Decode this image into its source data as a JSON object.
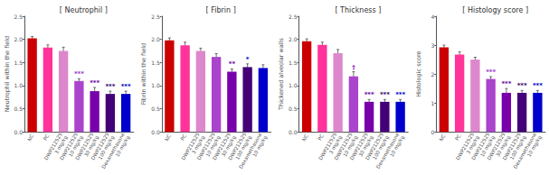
{
  "chart_data": [
    {
      "type": "bar",
      "title": "[ Neutrophil ]",
      "ylabel": "Neutrophil within the field",
      "categories": [
        "NC",
        "PC",
        "DWP212525\n3 mg/kg",
        "DWP212525\n10 mg/kg",
        "DWP212525\n30 mg/kg",
        "DWP212525\n100 mg/kg",
        "Dexamethasone\n10 mg/kg"
      ],
      "values": [
        2.02,
        1.82,
        1.75,
        1.1,
        0.88,
        0.82,
        0.82
      ],
      "errors": [
        0.04,
        0.06,
        0.08,
        0.05,
        0.08,
        0.06,
        0.06
      ],
      "colors": [
        "#cc0000",
        "#ff3399",
        "#dd88cc",
        "#aa44cc",
        "#7700aa",
        "#440077",
        "#0000cc"
      ],
      "ylim": [
        0,
        2.5
      ],
      "yticks": [
        {
          "value": 0,
          "label": "0.0"
        },
        0.5,
        {
          "value": 1,
          "label": "1.0"
        },
        1.5,
        {
          "value": 2,
          "label": "2.0"
        },
        2.5
      ],
      "grid": false,
      "annotations": [
        {
          "category": "DWP212525\n10 mg/kg",
          "text": "***",
          "color": "#9933cc"
        },
        {
          "category": "DWP212525\n30 mg/kg",
          "text": "***",
          "color": "#660099"
        },
        {
          "category": "DWP212525\n100 mg/kg",
          "text": "***",
          "color": "#330066"
        },
        {
          "category": "Dexamethasone\n10 mg/kg",
          "text": "***",
          "color": "#0000cc"
        }
      ]
    },
    {
      "type": "bar",
      "title": "[ Fibrin ]",
      "ylabel": "Fibrin within the field",
      "categories": [
        "NC",
        "PC",
        "DWP212525\n3 mg/kg",
        "DWP212525\n10 mg/kg",
        "DWP212525\n30 mg/kg",
        "DWP212525\n100 mg/kg",
        "Dexamethasone\n10 mg/kg"
      ],
      "values": [
        1.98,
        1.87,
        1.75,
        1.62,
        1.3,
        1.4,
        1.38
      ],
      "errors": [
        0.05,
        0.07,
        0.06,
        0.07,
        0.06,
        0.07,
        0.07
      ],
      "colors": [
        "#cc0000",
        "#ff3399",
        "#dd88cc",
        "#aa44cc",
        "#7700aa",
        "#440077",
        "#0000cc"
      ],
      "ylim": [
        0,
        2.5
      ],
      "yticks": [
        {
          "value": 0,
          "label": "0.0"
        },
        0.5,
        {
          "value": 1,
          "label": "1.0"
        },
        1.5,
        {
          "value": 2,
          "label": "2.0"
        },
        2.5
      ],
      "grid": false,
      "annotations": [
        {
          "category": "DWP212525\n30 mg/kg",
          "text": "**",
          "color": "#660099"
        },
        {
          "category": "DWP212525\n100 mg/kg",
          "text": "*",
          "color": "#0000cc"
        }
      ]
    },
    {
      "type": "bar",
      "title": "[ Thickness ]",
      "ylabel": "Thickened alveolar walls",
      "categories": [
        "NC",
        "PC",
        "DWP212525\n3 mg/kg",
        "DWP212525\n10 mg/kg",
        "DWP212525\n30 mg/kg",
        "DWP212525\n100 mg/kg",
        "Dexamethasone\n10 mg/kg"
      ],
      "values": [
        1.96,
        1.88,
        1.7,
        1.2,
        0.65,
        0.65,
        0.65
      ],
      "errors": [
        0.05,
        0.06,
        0.08,
        0.1,
        0.05,
        0.05,
        0.05
      ],
      "colors": [
        "#cc0000",
        "#ff3399",
        "#dd88cc",
        "#aa44cc",
        "#7700aa",
        "#440077",
        "#0000cc"
      ],
      "ylim": [
        0,
        2.5
      ],
      "yticks": [
        {
          "value": 0,
          "label": "0.0"
        },
        0.5,
        {
          "value": 1,
          "label": "1.0"
        },
        1.5,
        {
          "value": 2,
          "label": "2.0"
        },
        2.5
      ],
      "grid": false,
      "annotations": [
        {
          "category": "DWP212525\n10 mg/kg",
          "text": "†",
          "color": "#9933cc"
        },
        {
          "category": "DWP212525\n30 mg/kg",
          "text": "***",
          "color": "#660099"
        },
        {
          "category": "DWP212525\n100 mg/kg",
          "text": "***",
          "color": "#330066"
        },
        {
          "category": "Dexamethasone\n10 mg/kg",
          "text": "***",
          "color": "#0000cc"
        }
      ]
    },
    {
      "type": "bar",
      "title": "[ Histology score ]",
      "ylabel": "Histologic score",
      "categories": [
        "NC",
        "PC",
        "DWP212525\n3 mg/kg",
        "DWP212525\n10 mg/kg",
        "DWP212525\n30 mg/kg",
        "DWP212525\n100 mg/kg",
        "Dexamethasone\n10 mg/kg"
      ],
      "values": [
        2.92,
        2.67,
        2.5,
        1.83,
        1.35,
        1.35,
        1.35
      ],
      "errors": [
        0.08,
        0.1,
        0.08,
        0.08,
        0.15,
        0.08,
        0.08
      ],
      "colors": [
        "#cc0000",
        "#ff3399",
        "#dd88cc",
        "#aa44cc",
        "#7700aa",
        "#440077",
        "#0000cc"
      ],
      "ylim": [
        0,
        4
      ],
      "yticks": [
        0,
        1,
        2,
        3,
        4
      ],
      "grid": false,
      "annotations": [
        {
          "category": "DWP212525\n10 mg/kg",
          "text": "***",
          "color": "#9933cc"
        },
        {
          "category": "DWP212525\n30 mg/kg",
          "text": "***",
          "color": "#660099"
        },
        {
          "category": "DWP212525\n100 mg/kg",
          "text": "***",
          "color": "#330066"
        },
        {
          "category": "Dexamethasone\n10 mg/kg",
          "text": "***",
          "color": "#0000cc"
        }
      ]
    }
  ]
}
